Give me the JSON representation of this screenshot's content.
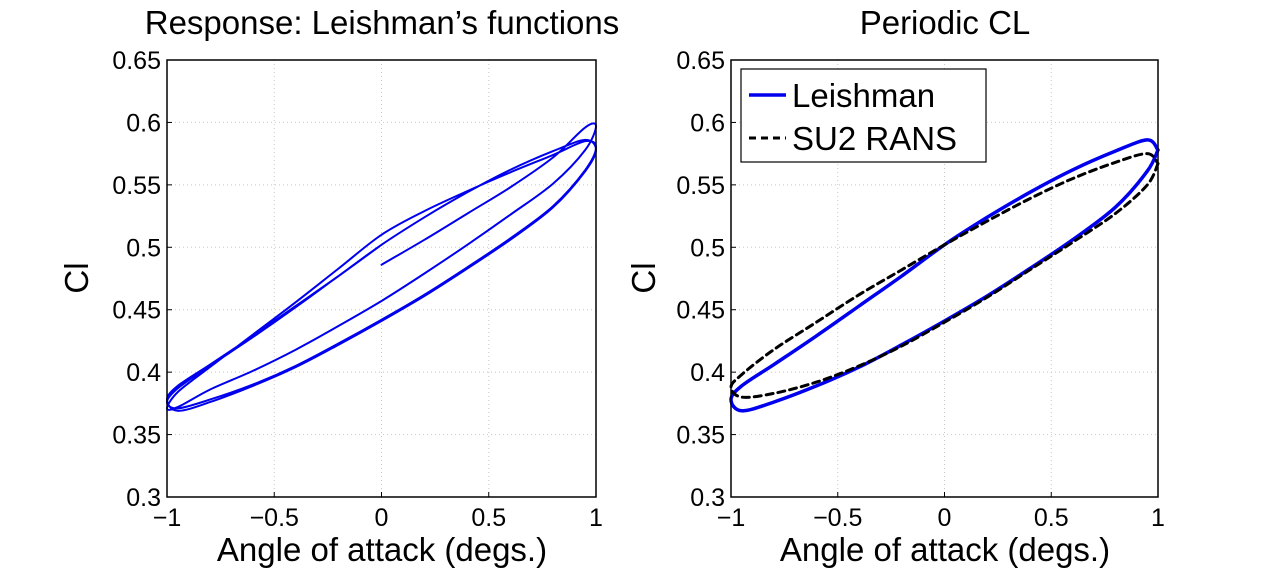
{
  "chart_data": [
    {
      "type": "line",
      "title": "Response: Leishman’s functions",
      "xlabel": "Angle of attack (degs.)",
      "ylabel": "Cl",
      "xlim": [
        -1,
        1
      ],
      "ylim": [
        0.3,
        0.65
      ],
      "xticks": [
        "−1",
        "−0.5",
        "0",
        "0.5",
        "1"
      ],
      "yticks": [
        "0.3",
        "0.35",
        "0.4",
        "0.45",
        "0.5",
        "0.55",
        "0.6",
        "0.65"
      ],
      "grid": true,
      "legend": null,
      "series": [
        {
          "color": "#0000ee",
          "style": "solid",
          "x": [
            0.0,
            0.2,
            0.4,
            0.6,
            0.8,
            0.95,
            1.0,
            0.95,
            0.8,
            0.6,
            0.4,
            0.2,
            0.0,
            -0.2,
            -0.4,
            -0.6,
            -0.8,
            -0.95,
            -1.0,
            -0.95,
            -0.8,
            -0.6,
            -0.4,
            -0.2,
            0.0,
            0.2,
            0.4,
            0.6,
            0.8,
            0.95,
            1.0,
            0.95,
            0.8,
            0.6,
            0.4,
            0.2,
            0.0,
            -0.2,
            -0.4,
            -0.6,
            -0.8,
            -0.95,
            -1.0,
            -0.95,
            -0.8,
            -0.6,
            -0.4,
            -0.2,
            0.0,
            0.2,
            0.4,
            0.6,
            0.8,
            0.95,
            1.0,
            0.95,
            0.8,
            0.6,
            0.4,
            0.2,
            0.0,
            -0.2,
            -0.4,
            -0.6,
            -0.8,
            -0.95,
            -1.0,
            -0.95,
            -0.8,
            -0.6,
            -0.4,
            -0.2,
            0.0
          ],
          "y": [
            0.486,
            0.506,
            0.527,
            0.548,
            0.572,
            0.596,
            0.597,
            0.578,
            0.551,
            0.526,
            0.502,
            0.479,
            0.457,
            0.437,
            0.418,
            0.401,
            0.386,
            0.372,
            0.371,
            0.384,
            0.404,
            0.43,
            0.456,
            0.483,
            0.51,
            0.529,
            0.545,
            0.56,
            0.574,
            0.585,
            0.58,
            0.562,
            0.533,
            0.507,
            0.484,
            0.462,
            0.442,
            0.423,
            0.405,
            0.39,
            0.378,
            0.371,
            0.376,
            0.387,
            0.405,
            0.428,
            0.452,
            0.477,
            0.502,
            0.524,
            0.544,
            0.562,
            0.577,
            0.586,
            0.578,
            0.561,
            0.532,
            0.506,
            0.483,
            0.461,
            0.441,
            0.422,
            0.404,
            0.389,
            0.376,
            0.369,
            0.378,
            0.389,
            0.406,
            0.429,
            0.453,
            0.477,
            0.502
          ]
        }
      ]
    },
    {
      "type": "line",
      "title": "Periodic CL",
      "xlabel": "Angle of attack (degs.)",
      "ylabel": "Cl",
      "xlim": [
        -1,
        1
      ],
      "ylim": [
        0.3,
        0.65
      ],
      "xticks": [
        "−1",
        "−0.5",
        "0",
        "0.5",
        "1"
      ],
      "yticks": [
        "0.3",
        "0.35",
        "0.4",
        "0.45",
        "0.5",
        "0.55",
        "0.6",
        "0.65"
      ],
      "grid": true,
      "legend": "top-left",
      "series": [
        {
          "name": "Leishman",
          "color": "#0000ee",
          "style": "solid",
          "x": [
            1.0,
            0.95,
            0.8,
            0.6,
            0.4,
            0.2,
            0.0,
            -0.2,
            -0.4,
            -0.6,
            -0.8,
            -0.95,
            -1.0,
            -0.95,
            -0.8,
            -0.6,
            -0.4,
            -0.2,
            0.0,
            0.2,
            0.4,
            0.6,
            0.8,
            0.95,
            1.0
          ],
          "y": [
            0.578,
            0.561,
            0.532,
            0.506,
            0.483,
            0.461,
            0.441,
            0.422,
            0.404,
            0.389,
            0.376,
            0.369,
            0.378,
            0.389,
            0.406,
            0.429,
            0.453,
            0.477,
            0.502,
            0.524,
            0.544,
            0.562,
            0.577,
            0.586,
            0.578
          ]
        },
        {
          "name": "SU2 RANS",
          "color": "#000000",
          "style": "dashed",
          "x": [
            1.0,
            0.95,
            0.8,
            0.6,
            0.4,
            0.2,
            0.0,
            -0.2,
            -0.4,
            -0.6,
            -0.8,
            -0.95,
            -1.0,
            -0.95,
            -0.8,
            -0.6,
            -0.4,
            -0.2,
            0.0,
            0.2,
            0.4,
            0.6,
            0.8,
            0.95,
            1.0
          ],
          "y": [
            0.567,
            0.55,
            0.527,
            0.504,
            0.482,
            0.46,
            0.44,
            0.421,
            0.405,
            0.392,
            0.383,
            0.38,
            0.388,
            0.398,
            0.418,
            0.44,
            0.462,
            0.482,
            0.502,
            0.521,
            0.539,
            0.555,
            0.568,
            0.575,
            0.567
          ]
        }
      ]
    }
  ]
}
